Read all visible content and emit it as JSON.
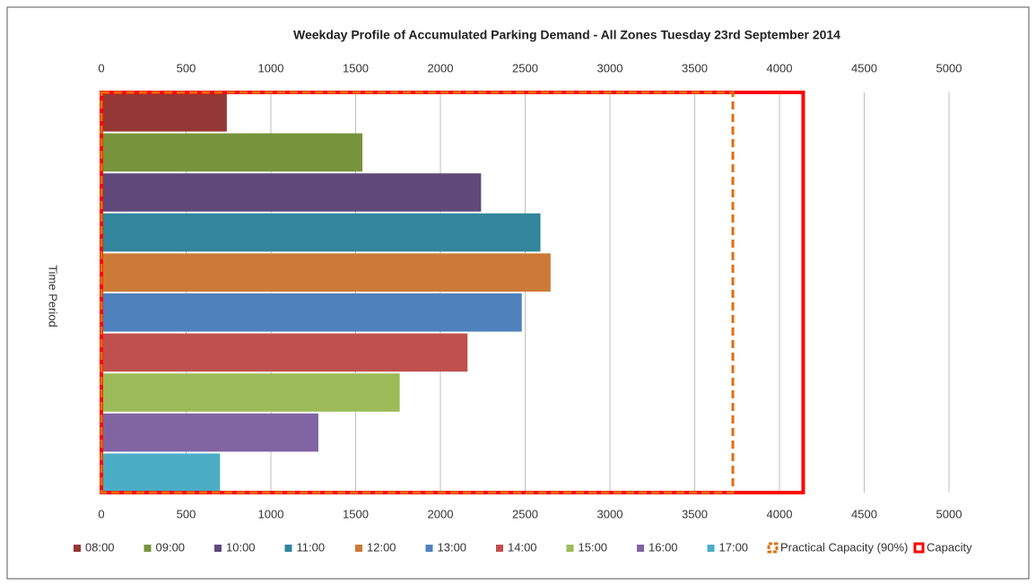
{
  "chart_data": {
    "type": "bar",
    "orientation": "horizontal",
    "title": "Weekday Profile of Accumulated Parking Demand - All Zones Tuesday 23rd September 2014",
    "y_label": "Time Period",
    "xlim": [
      0,
      5000
    ],
    "xticks": [
      0,
      500,
      1000,
      1500,
      2000,
      2500,
      3000,
      3500,
      4000,
      4500,
      5000
    ],
    "grid": true,
    "legend": "bottom",
    "series": [
      {
        "name": "08:00",
        "color": "#953735",
        "values": [
          740
        ]
      },
      {
        "name": "09:00",
        "color": "#77933c",
        "values": [
          1540
        ]
      },
      {
        "name": "10:00",
        "color": "#604a7b",
        "values": [
          2240
        ]
      },
      {
        "name": "11:00",
        "color": "#31859c",
        "values": [
          2590
        ]
      },
      {
        "name": "12:00",
        "color": "#cc7a38",
        "values": [
          2650
        ]
      },
      {
        "name": "13:00",
        "color": "#4f81bd",
        "values": [
          2480
        ]
      },
      {
        "name": "14:00",
        "color": "#c0504d",
        "values": [
          2160
        ]
      },
      {
        "name": "15:00",
        "color": "#9bbb59",
        "values": [
          1760
        ]
      },
      {
        "name": "16:00",
        "color": "#8064a2",
        "values": [
          1280
        ]
      },
      {
        "name": "17:00",
        "color": "#4bacc6",
        "values": [
          700
        ]
      }
    ],
    "capacity_lines": [
      {
        "name": "Practical Capacity (90%)",
        "color": "#e46c0a",
        "dashed": true,
        "value": 3725
      },
      {
        "name": "Capacity",
        "color": "#ff0000",
        "dashed": false,
        "value": 4140
      }
    ]
  }
}
